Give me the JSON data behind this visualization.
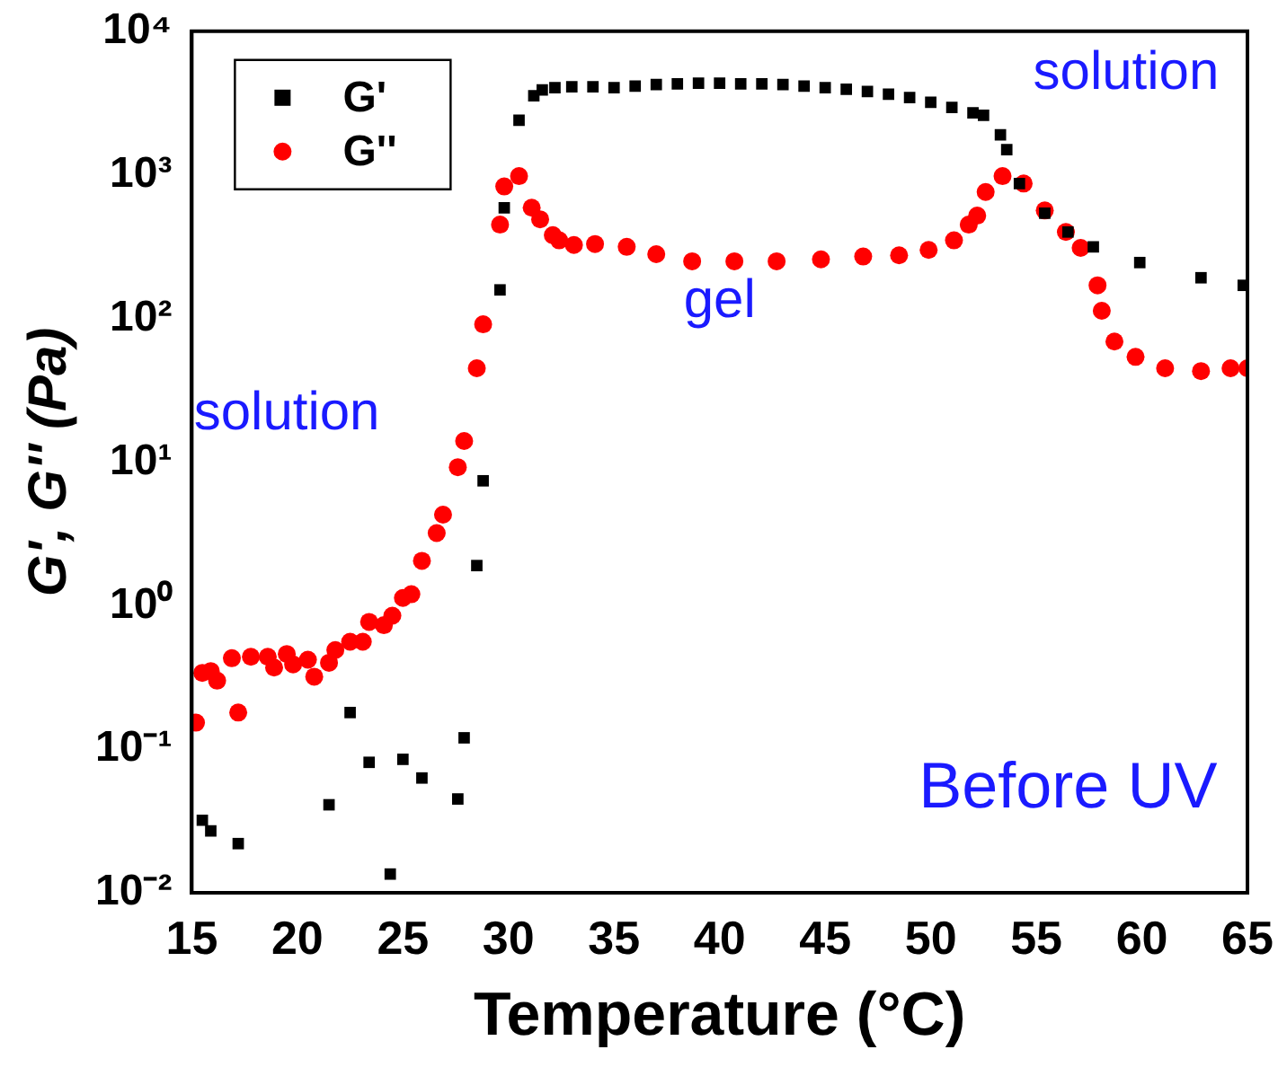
{
  "chart_data": {
    "type": "scatter",
    "xlabel": "Temperature (°C)",
    "ylabel": "G', G'' (Pa)",
    "xlim": [
      15,
      65
    ],
    "xticks": [
      15,
      20,
      25,
      30,
      35,
      40,
      45,
      50,
      55,
      60,
      65
    ],
    "ylim": [
      0.01,
      10000
    ],
    "log": "y",
    "yticks": [
      {
        "value": 0.01,
        "label": "10⁻²"
      },
      {
        "value": 0.1,
        "label": "10⁻¹"
      },
      {
        "value": 1,
        "label": "10⁰"
      },
      {
        "value": 10,
        "label": "10¹"
      },
      {
        "value": 100,
        "label": "10²"
      },
      {
        "value": 1000,
        "label": "10³"
      },
      {
        "value": 10000,
        "label": "10⁴"
      }
    ],
    "legend": "top left",
    "grid": false,
    "series": [
      {
        "name": "G'",
        "color": "#000000",
        "marker": "square",
        "x": [
          15.5,
          15.9,
          17.2,
          21.5,
          22.5,
          23.4,
          24.4,
          25.0,
          25.9,
          27.6,
          27.9,
          28.5,
          28.8,
          29.6,
          29.8,
          30.5,
          31.2,
          31.6,
          32.2,
          33,
          34,
          35,
          36,
          37,
          38,
          39,
          40,
          41,
          42,
          43,
          44,
          45,
          46,
          47,
          48,
          49,
          50,
          51,
          52,
          52.5,
          53.3,
          53.6,
          54.2,
          55.4,
          56.5,
          57.7,
          59.9,
          62.8,
          64.8
        ],
        "values": [
          0.032,
          0.027,
          0.022,
          0.041,
          0.18,
          0.081,
          0.0135,
          0.085,
          0.063,
          0.045,
          0.12,
          1.9,
          7.4,
          158,
          590,
          2400,
          3550,
          3900,
          4050,
          4100,
          4100,
          4050,
          4150,
          4250,
          4300,
          4350,
          4350,
          4300,
          4300,
          4250,
          4150,
          4050,
          3950,
          3800,
          3650,
          3450,
          3200,
          2950,
          2700,
          2600,
          1900,
          1500,
          870,
          540,
          400,
          315,
          245,
          192,
          170
        ]
      },
      {
        "name": "G''",
        "color": "#ff0000",
        "marker": "circle",
        "x": [
          15.2,
          15.5,
          15.9,
          16.2,
          16.9,
          17.2,
          17.8,
          18.6,
          18.9,
          19.5,
          19.8,
          20.5,
          20.8,
          21.5,
          21.8,
          22.5,
          23.1,
          23.4,
          24.1,
          24.5,
          25.0,
          25.4,
          25.9,
          26.6,
          26.9,
          27.6,
          27.9,
          28.5,
          28.8,
          29.6,
          29.8,
          30.5,
          31.1,
          31.5,
          32.1,
          32.4,
          33.1,
          34.1,
          35.6,
          37.0,
          38.7,
          40.7,
          42.7,
          44.8,
          46.8,
          48.5,
          49.9,
          51.1,
          51.8,
          52.2,
          52.6,
          53.4,
          54.4,
          55.4,
          56.4,
          57.1,
          57.9,
          58.1,
          58.7,
          59.7,
          61.1,
          62.8,
          64.2,
          65
        ],
        "values": [
          0.153,
          0.34,
          0.35,
          0.3,
          0.43,
          0.18,
          0.44,
          0.44,
          0.37,
          0.46,
          0.39,
          0.42,
          0.32,
          0.4,
          0.49,
          0.56,
          0.56,
          0.77,
          0.73,
          0.85,
          1.13,
          1.2,
          2.05,
          3.2,
          4.3,
          9.2,
          14,
          45,
          91,
          450,
          830,
          980,
          590,
          490,
          380,
          350,
          325,
          330,
          315,
          280,
          250,
          250,
          250,
          258,
          270,
          275,
          300,
          350,
          450,
          520,
          760,
          980,
          870,
          565,
          400,
          310,
          170,
          113,
          69,
          54,
          45,
          43,
          45,
          45
        ]
      }
    ],
    "annotations": [
      "solution",
      "gel",
      "solution",
      "Before UV"
    ]
  }
}
